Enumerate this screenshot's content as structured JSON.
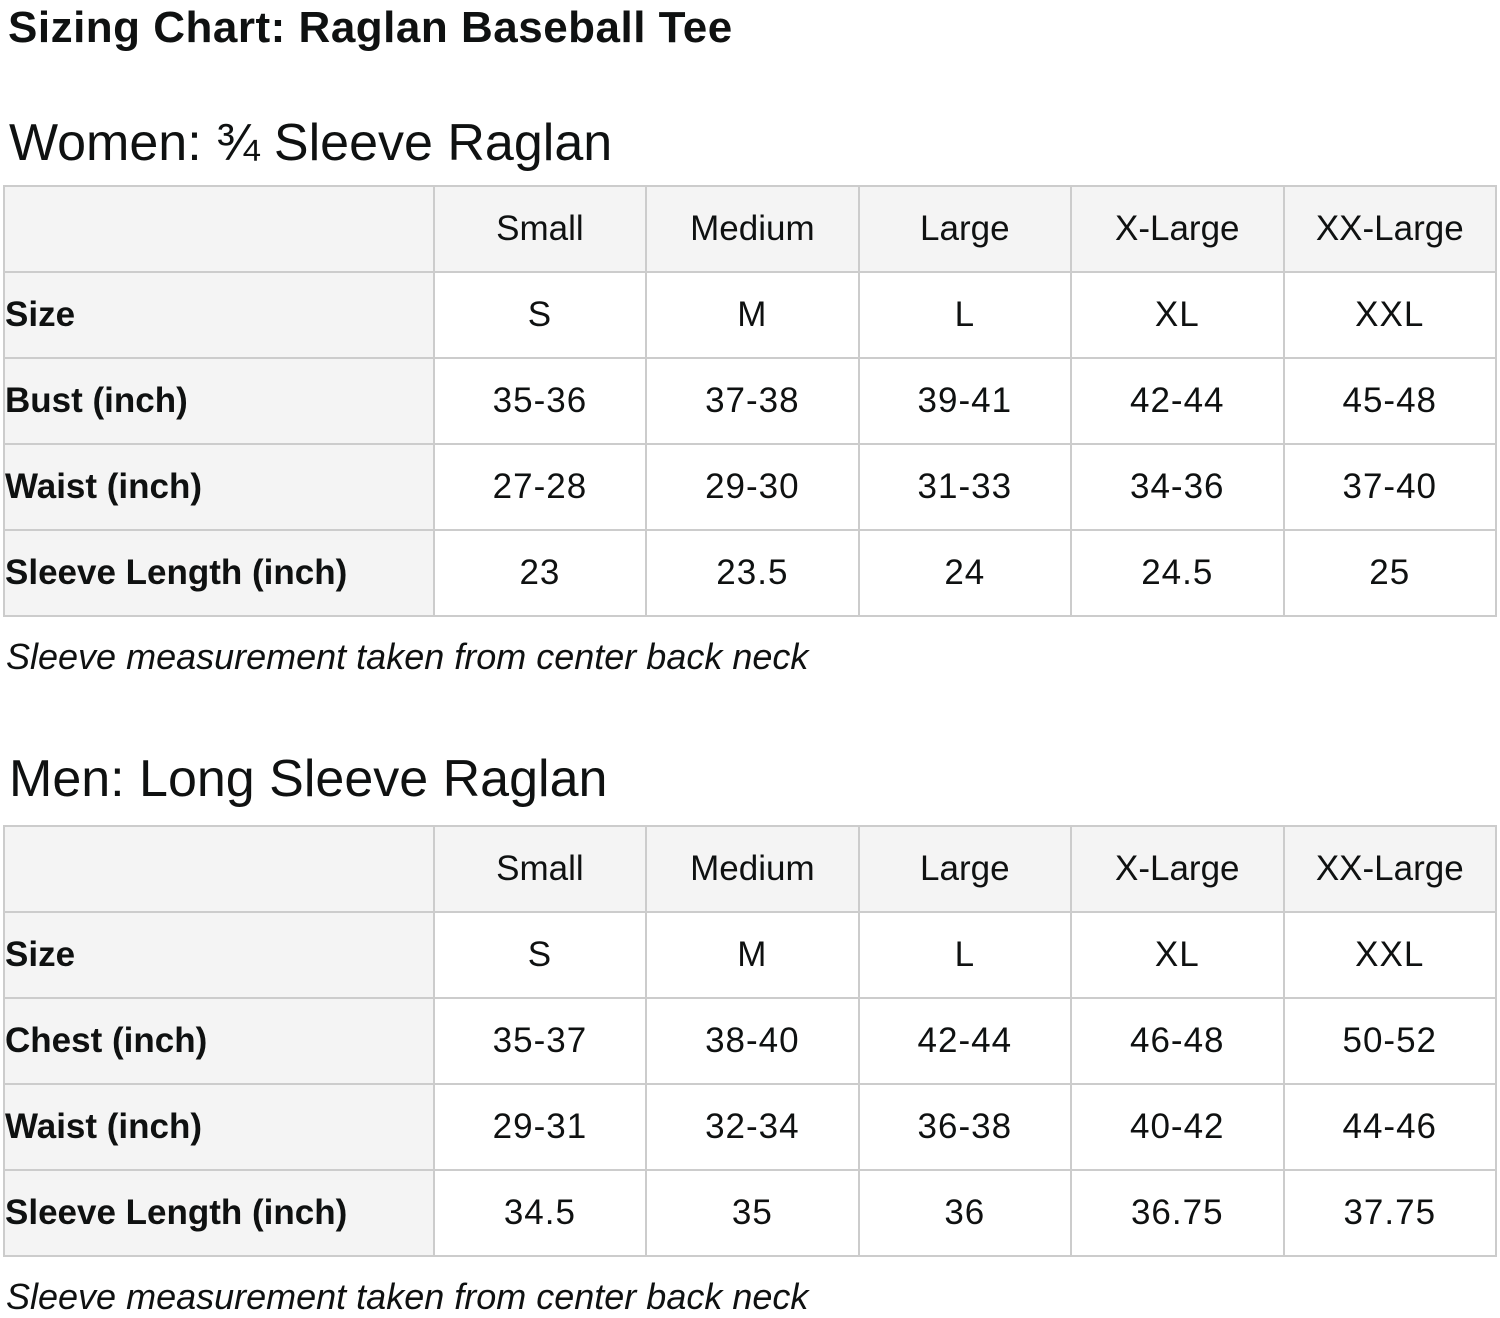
{
  "page": {
    "title": "Sizing Chart: Raglan Baseball Tee"
  },
  "colors": {
    "header_cell_bg": "#f4f4f4",
    "table_border": "#cccccc",
    "text": "#0f1111",
    "background": "#ffffff"
  },
  "tables": [
    {
      "heading": "Women: ¾ Sleeve Raglan",
      "columns": [
        "",
        "Small",
        "Medium",
        "Large",
        "X-Large",
        "XX-Large"
      ],
      "rows": [
        {
          "label": "Size",
          "values": [
            "S",
            "M",
            "L",
            "XL",
            "XXL"
          ]
        },
        {
          "label": "Bust (inch)",
          "values": [
            "35-36",
            "37-38",
            "39-41",
            "42-44",
            "45-48"
          ]
        },
        {
          "label": "Waist (inch)",
          "values": [
            "27-28",
            "29-30",
            "31-33",
            "34-36",
            "37-40"
          ]
        },
        {
          "label": "Sleeve Length (inch)",
          "values": [
            "23",
            "23.5",
            "24",
            "24.5",
            "25"
          ]
        }
      ],
      "note": "Sleeve measurement taken from center back neck"
    },
    {
      "heading": "Men: Long Sleeve Raglan",
      "columns": [
        "",
        "Small",
        "Medium",
        "Large",
        "X-Large",
        "XX-Large"
      ],
      "rows": [
        {
          "label": "Size",
          "values": [
            "S",
            "M",
            "L",
            "XL",
            "XXL"
          ]
        },
        {
          "label": "Chest (inch)",
          "values": [
            "35-37",
            "38-40",
            "42-44",
            "46-48",
            "50-52"
          ]
        },
        {
          "label": "Waist (inch)",
          "values": [
            "29-31",
            "32-34",
            "36-38",
            "40-42",
            "44-46"
          ]
        },
        {
          "label": "Sleeve Length (inch)",
          "values": [
            "34.5",
            "35",
            "36",
            "36.75",
            "37.75"
          ]
        }
      ],
      "note": "Sleeve measurement taken from center back neck"
    }
  ]
}
